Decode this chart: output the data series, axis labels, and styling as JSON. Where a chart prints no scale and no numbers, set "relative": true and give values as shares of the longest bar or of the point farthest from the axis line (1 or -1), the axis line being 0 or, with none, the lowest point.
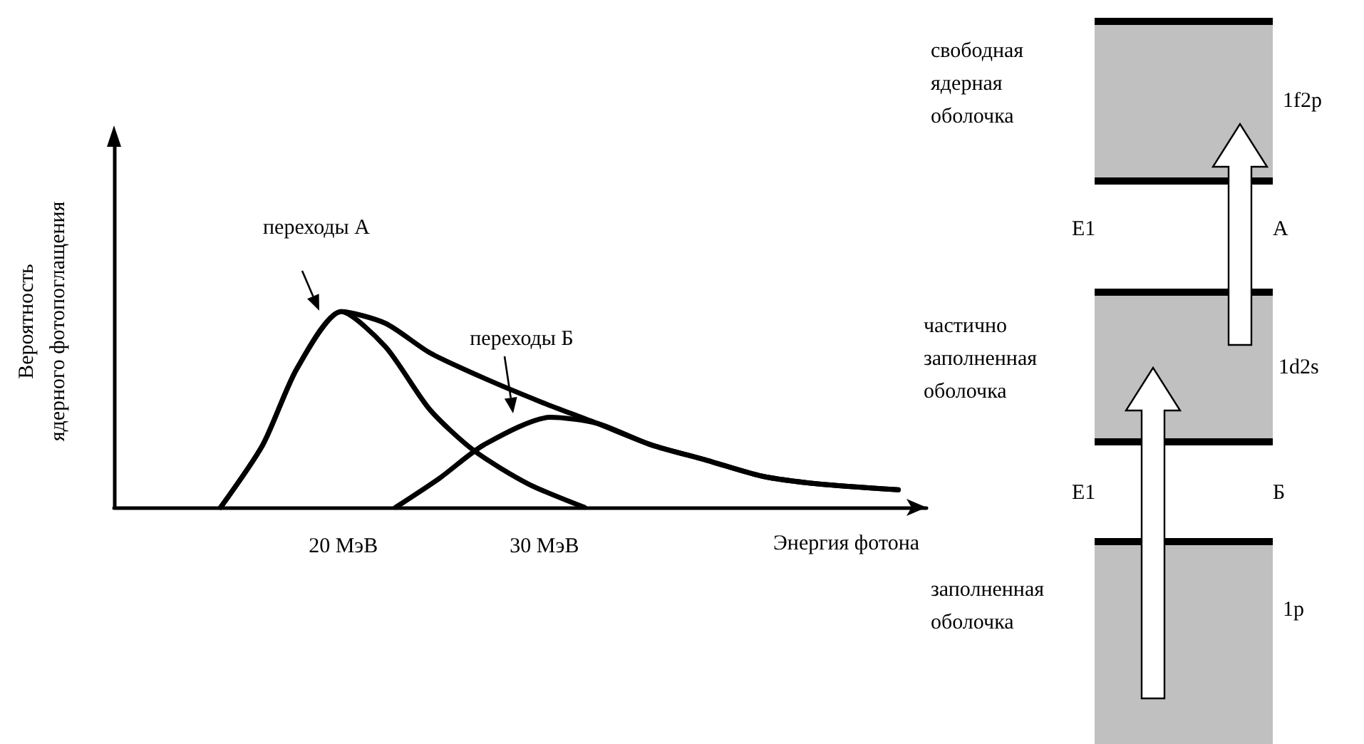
{
  "chart_data": [
    {
      "type": "line",
      "relative": true,
      "ylabel": "Вероятность ядерного фотопоглащения",
      "xlabel": "Энергия фотона",
      "xlim": [
        8.6,
        49
      ],
      "xticks": [
        {
          "value": 20,
          "label": "20 МэВ"
        },
        {
          "value": 30,
          "label": "30 МэВ"
        }
      ],
      "grid": false,
      "marker": "none",
      "line_style": "solid",
      "series": [
        {
          "color": "#000000",
          "x": [
            13.9,
            16.0,
            17.7,
            19.9,
            22.1,
            24.3,
            26.5,
            29.2,
            32.0
          ],
          "values": [
            0,
            0.32,
            0.71,
            1.0,
            0.82,
            0.5,
            0.29,
            0.12,
            0
          ]
        },
        {
          "color": "#000000",
          "x": [
            22.6,
            24.8,
            27.0,
            30.3,
            32.6,
            35.3,
            38.1,
            40.8,
            43.6,
            47.6
          ],
          "values": [
            0,
            0.15,
            0.32,
            0.46,
            0.43,
            0.32,
            0.24,
            0.16,
            0.12,
            0.09
          ]
        },
        {
          "color": "#000000",
          "x": [
            13.9,
            16.0,
            17.7,
            19.9,
            22.1,
            24.3,
            27.0,
            29.8,
            32.6,
            35.3,
            38.1,
            40.8,
            43.6,
            47.6
          ],
          "values": [
            0,
            0.32,
            0.71,
            1.0,
            0.94,
            0.79,
            0.66,
            0.54,
            0.43,
            0.32,
            0.24,
            0.16,
            0.12,
            0.09
          ]
        }
      ],
      "annotations": [
        "переходы А",
        "переходы Б"
      ]
    },
    {
      "type": "other",
      "annotations": [
        "свободная ядерная оболочка",
        "1f2p",
        "E1",
        "А",
        "частично заполненная оболочка",
        "1d2s",
        "E1",
        "Б",
        "заполненная оболочка",
        "1p"
      ]
    }
  ]
}
